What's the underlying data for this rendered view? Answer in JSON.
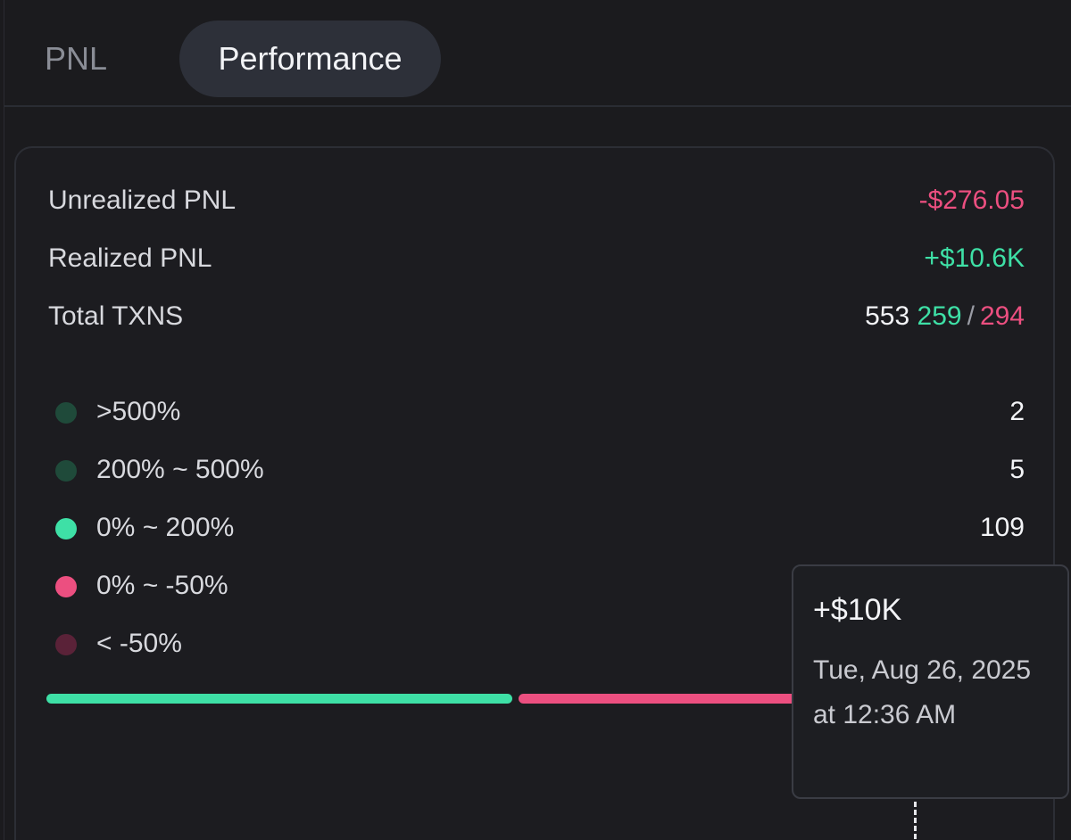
{
  "tabs": [
    {
      "label": "PNL",
      "active": false
    },
    {
      "label": "Performance",
      "active": true
    }
  ],
  "summary": {
    "unrealized": {
      "label": "Unrealized PNL",
      "value": "-$276.05"
    },
    "realized": {
      "label": "Realized PNL",
      "value": "+$10.6K"
    },
    "txns": {
      "label": "Total TXNS",
      "total": "553",
      "wins": "259",
      "separator": "/",
      "losses": "294"
    }
  },
  "buckets": [
    {
      "label": ">500%",
      "count": "2",
      "color": "#1f4a3a"
    },
    {
      "label": "200% ~ 500%",
      "count": "5",
      "color": "#1f4a3a"
    },
    {
      "label": "0% ~ 200%",
      "count": "109",
      "color": "#3ee0a6"
    },
    {
      "label": "0% ~ -50%",
      "count": "",
      "color": "#ec4f80"
    },
    {
      "label": "< -50%",
      "count": "",
      "color": "#5a2238"
    }
  ],
  "distribution": {
    "positive_color": "#3ee0a6",
    "negative_color": "#ec4f80"
  },
  "tooltip": {
    "value": "+$10K",
    "date": "Tue, Aug 26, 2025 at 12:36 AM"
  }
}
